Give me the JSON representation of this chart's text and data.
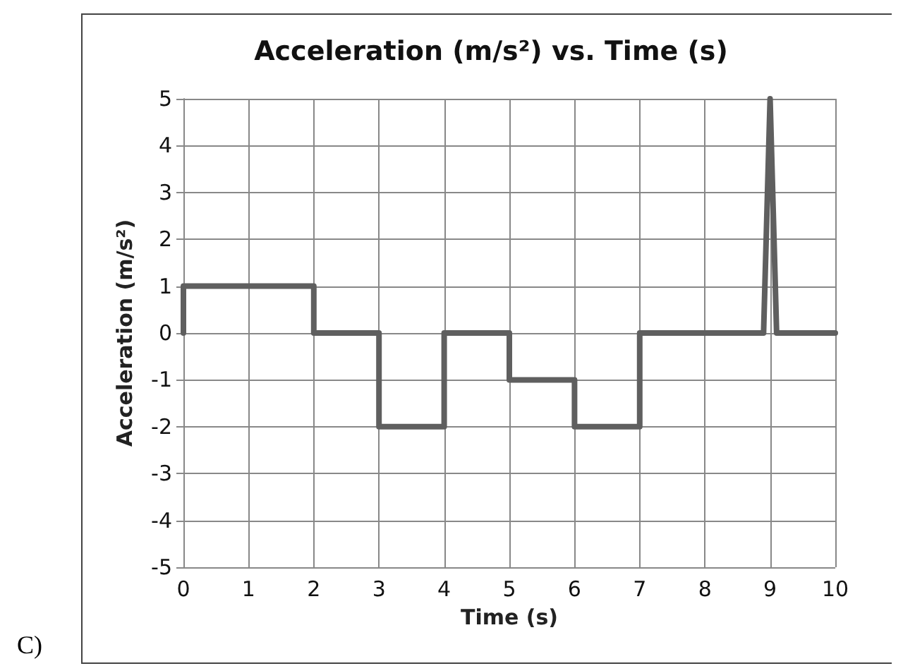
{
  "chart_data": {
    "type": "line",
    "title": "Acceleration (m/s²) vs. Time (s)",
    "xlabel": "Time (s)",
    "ylabel": "Acceleration (m/s²)",
    "x": [
      0,
      0,
      2,
      2,
      3,
      3,
      4,
      4,
      5,
      5,
      6,
      6,
      7,
      7,
      8.9,
      9,
      9.1,
      10
    ],
    "series": [
      {
        "color": "#5f5f5f",
        "values": [
          0,
          1,
          1,
          0,
          0,
          -2,
          -2,
          0,
          0,
          -1,
          -1,
          -2,
          -2,
          0,
          0,
          5,
          0,
          0
        ]
      }
    ],
    "xlim": [
      0,
      10
    ],
    "xticks": [
      0,
      1,
      2,
      3,
      4,
      5,
      6,
      7,
      8,
      9,
      10
    ],
    "ylim": [
      -5,
      5
    ],
    "yticks": [
      -5,
      -4,
      -3,
      -2,
      -1,
      0,
      1,
      2,
      3,
      4,
      5
    ],
    "grid": true,
    "marker": "none",
    "line_style": "solid",
    "annotations": [
      "C)"
    ]
  }
}
